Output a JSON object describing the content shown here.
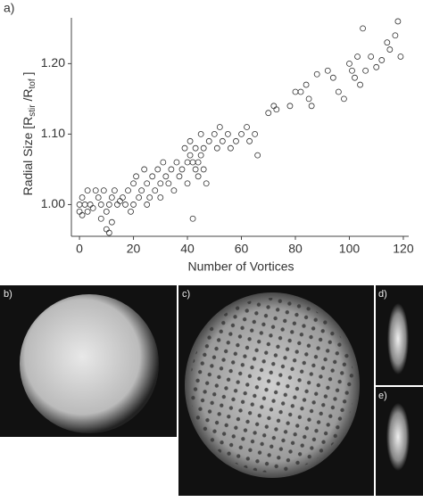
{
  "chart_data": {
    "type": "scatter",
    "panel_label": "a)",
    "xlabel": "Number of Vortices",
    "ylabel": [
      "Radial Size [R",
      "stir",
      " /R",
      "tof",
      " ]"
    ],
    "xlim": [
      -3,
      122
    ],
    "ylim": [
      0.955,
      1.265
    ],
    "xticks": [
      0,
      20,
      40,
      60,
      80,
      100,
      120
    ],
    "yticks": [
      {
        "value": 1,
        "label": "1.00"
      },
      {
        "value": 1.1,
        "label": "1.10"
      },
      {
        "value": 1.2,
        "label": "1.20"
      }
    ],
    "color": "#333333",
    "x": [
      0,
      0,
      1,
      1,
      2,
      3,
      3,
      4,
      5,
      6,
      7,
      8,
      8,
      9,
      10,
      10,
      11,
      11,
      12,
      12,
      13,
      14,
      15,
      16,
      17,
      18,
      19,
      20,
      20,
      21,
      22,
      23,
      24,
      25,
      25,
      26,
      27,
      28,
      29,
      30,
      30,
      31,
      32,
      33,
      34,
      35,
      36,
      37,
      38,
      39,
      40,
      40,
      41,
      41,
      42,
      42,
      43,
      43,
      44,
      44,
      45,
      45,
      46,
      46,
      47,
      48,
      50,
      51,
      52,
      53,
      55,
      56,
      58,
      60,
      62,
      63,
      65,
      66,
      70,
      72,
      73,
      78,
      80,
      82,
      84,
      85,
      86,
      88,
      92,
      94,
      96,
      98,
      100,
      101,
      102,
      103,
      104,
      105,
      106,
      108,
      110,
      112,
      114,
      115,
      117,
      118,
      119
    ],
    "values": [
      0.99,
      1.0,
      1.01,
      0.985,
      1.0,
      1.02,
      0.99,
      1.0,
      0.995,
      1.02,
      1.01,
      1.0,
      0.98,
      1.02,
      0.99,
      0.965,
      0.96,
      1.0,
      1.01,
      0.975,
      1.02,
      1.0,
      1.005,
      1.01,
      1.0,
      1.02,
      0.99,
      1.03,
      1.0,
      1.04,
      1.01,
      1.02,
      1.05,
      1.03,
      1.0,
      1.01,
      1.04,
      1.02,
      1.05,
      1.01,
      1.03,
      1.06,
      1.04,
      1.03,
      1.05,
      1.02,
      1.06,
      1.04,
      1.05,
      1.08,
      1.06,
      1.03,
      1.09,
      1.07,
      0.98,
      1.06,
      1.05,
      1.08,
      1.04,
      1.06,
      1.07,
      1.1,
      1.05,
      1.08,
      1.03,
      1.09,
      1.1,
      1.08,
      1.11,
      1.09,
      1.1,
      1.08,
      1.09,
      1.1,
      1.11,
      1.09,
      1.1,
      1.07,
      1.13,
      1.14,
      1.135,
      1.14,
      1.16,
      1.16,
      1.17,
      1.15,
      1.14,
      1.185,
      1.19,
      1.18,
      1.16,
      1.15,
      1.2,
      1.19,
      1.18,
      1.21,
      1.17,
      1.25,
      1.19,
      1.21,
      1.195,
      1.205,
      1.23,
      1.22,
      1.24,
      1.26,
      1.21
    ]
  },
  "panels": {
    "b": "b)",
    "c": "c)",
    "d": "d)",
    "e": "e)"
  }
}
